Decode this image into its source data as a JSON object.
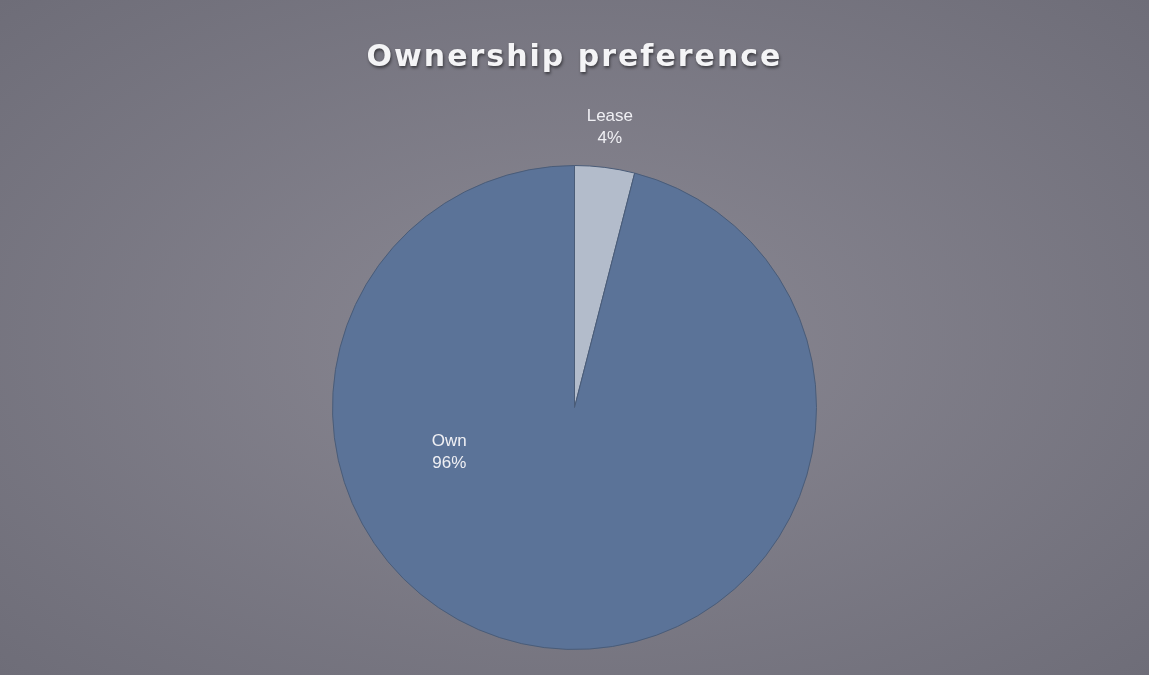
{
  "chart_data": {
    "type": "pie",
    "title": "Ownership preference",
    "categories": [
      "Lease",
      "Own"
    ],
    "values": [
      4,
      96
    ],
    "colors": [
      "#b3bccb",
      "#5b7398"
    ],
    "value_labels": [
      "4%",
      "96%"
    ],
    "legend": false
  }
}
